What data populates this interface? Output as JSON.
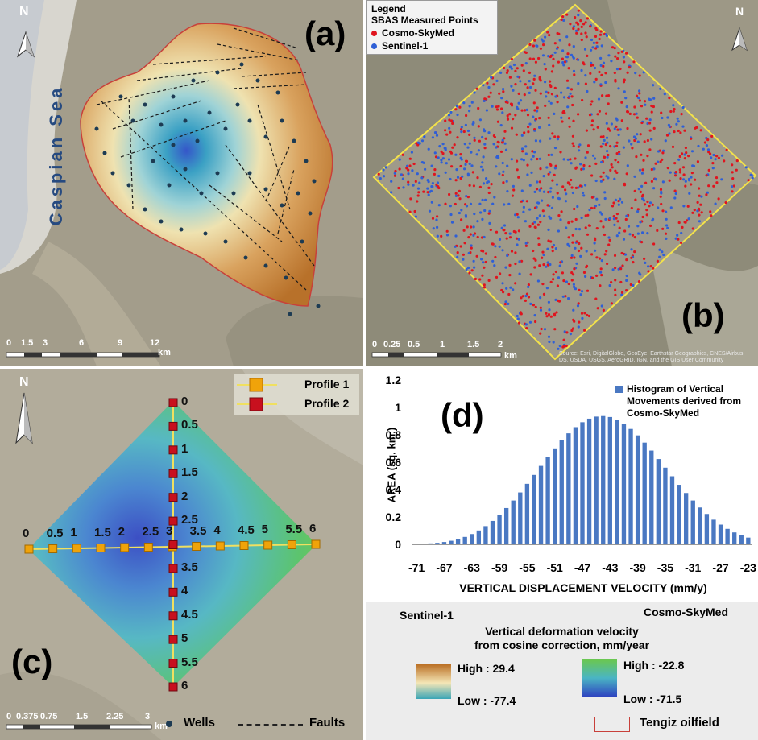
{
  "panel_a": {
    "label": "(a)",
    "sea_label": "Caspian Sea",
    "north": "N",
    "scale_ticks": [
      "0",
      "1.5",
      "3",
      "6",
      "9",
      "12"
    ],
    "scale_unit": "km"
  },
  "panel_b": {
    "label": "(b)",
    "north": "N",
    "scale_ticks": [
      "0",
      "0.25",
      "0.5",
      "1",
      "1.5",
      "2"
    ],
    "scale_unit": "km",
    "attribution": "Source: Esri, DigitalGlobe, GeoEye, Earthstar Geographics, CNES/Airbus DS, USDA, USGS, AeroGRID, IGN, and the GIS User Community",
    "legend": {
      "title": "Legend",
      "subtitle": "SBAS Measured Points",
      "items": [
        "Cosmo-SkyMed",
        "Sentinel-1"
      ],
      "colors": [
        "#e0141e",
        "#2f5fd6"
      ]
    }
  },
  "panel_c": {
    "label": "(c)",
    "north": "N",
    "scale_ticks": [
      "0",
      "0.375",
      "0.75",
      "1.5",
      "2.25",
      "3"
    ],
    "scale_unit": "km",
    "profile_legend": [
      "Profile 1",
      "Profile 2"
    ],
    "profile_colors": [
      "#f0a30a",
      "#c8101e"
    ],
    "profile1_ticks": [
      "0",
      "0.5",
      "1",
      "1.5",
      "2",
      "2.5",
      "3",
      "3.5",
      "4",
      "4.5",
      "5",
      "5.5",
      "6"
    ],
    "profile2_ticks": [
      "0",
      "0.5",
      "1",
      "1.5",
      "2",
      "2.5",
      "3",
      "3.5",
      "4",
      "4.5",
      "5",
      "5.5",
      "6"
    ]
  },
  "chart_data": {
    "type": "bar",
    "label": "(d)",
    "legend": "Histogram of Vertical Movements derived from Cosmo-SkyMed",
    "xlabel": "VERTICAL DISPLACEMENT VELOCITY (mm/y)",
    "ylabel": "AREA (sq. km.)",
    "ylim": [
      0,
      1.2
    ],
    "yticks": [
      "0",
      "0.2",
      "0.4",
      "0.6",
      "0.8",
      "1",
      "1.2"
    ],
    "xticks": [
      "-71",
      "-67",
      "-63",
      "-59",
      "-55",
      "-51",
      "-47",
      "-43",
      "-39",
      "-35",
      "-31",
      "-27",
      "-23"
    ],
    "x": [
      -71,
      -70,
      -69,
      -68,
      -67,
      -66,
      -65,
      -64,
      -63,
      -62,
      -61,
      -60,
      -59,
      -58,
      -57,
      -56,
      -55,
      -54,
      -53,
      -52,
      -51,
      -50,
      -49,
      -48,
      -47,
      -46,
      -45,
      -44,
      -43,
      -42,
      -41,
      -40,
      -39,
      -38,
      -37,
      -36,
      -35,
      -34,
      -33,
      -32,
      -31,
      -30,
      -29,
      -28,
      -27,
      -26,
      -25,
      -24,
      -23
    ],
    "values": [
      0.002,
      0.004,
      0.007,
      0.011,
      0.017,
      0.026,
      0.038,
      0.054,
      0.075,
      0.101,
      0.133,
      0.171,
      0.215,
      0.265,
      0.32,
      0.379,
      0.442,
      0.507,
      0.573,
      0.638,
      0.701,
      0.759,
      0.811,
      0.856,
      0.892,
      0.918,
      0.933,
      0.937,
      0.93,
      0.911,
      0.882,
      0.843,
      0.796,
      0.743,
      0.685,
      0.623,
      0.56,
      0.497,
      0.435,
      0.375,
      0.32,
      0.269,
      0.222,
      0.18,
      0.144,
      0.113,
      0.087,
      0.066,
      0.049
    ],
    "bar_color": "#4a78c2"
  },
  "bottom_legend": {
    "sentinel_label": "Sentinel-1",
    "cosmo_label": "Cosmo-SkyMed",
    "title_line1": "Vertical deformation velocity",
    "title_line2": "from cosine correction, mm/year",
    "sentinel_high": "High : 29.4",
    "sentinel_low": "Low : -77.4",
    "cosmo_high": "High : -22.8",
    "cosmo_low": "Low : -71.5",
    "wells": "Wells",
    "faults": "Faults",
    "oilfield": "Tengiz oilfield"
  }
}
